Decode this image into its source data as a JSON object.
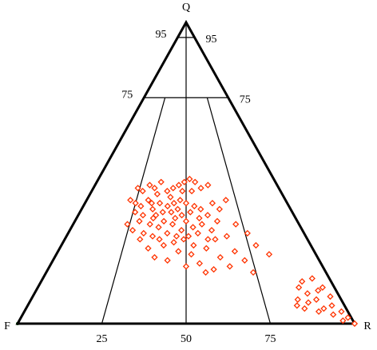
{
  "chart_data": {
    "type": "ternary",
    "apex_label": "Q",
    "left_label": "F",
    "right_label": "R",
    "xlim": [
      0,
      100
    ],
    "ylim": [
      0,
      100
    ],
    "xticks": [
      25,
      50,
      75
    ],
    "yticks": [
      75,
      95
    ],
    "color": "#ff3300",
    "x": [
      30,
      33,
      36,
      40,
      43,
      46,
      49,
      52,
      55,
      58,
      62,
      27,
      24,
      35,
      42,
      48,
      53,
      22,
      25,
      28,
      31,
      34,
      37,
      39,
      41,
      44,
      46,
      48,
      50,
      52,
      54,
      57,
      60,
      63,
      66,
      70,
      26,
      30,
      33,
      36,
      43,
      47,
      24,
      27,
      29,
      32,
      34,
      36,
      38,
      40,
      42,
      44,
      46,
      48,
      50,
      51,
      53,
      55,
      57,
      59,
      61,
      64,
      67,
      72,
      76,
      31,
      35,
      39,
      45,
      49,
      56,
      62,
      35,
      38,
      41,
      43,
      47,
      50,
      52,
      55,
      58,
      60,
      63,
      66,
      69,
      72,
      78,
      82,
      74,
      45,
      53,
      57,
      88,
      90,
      92,
      94,
      96,
      97,
      98,
      99,
      100,
      95,
      93,
      91,
      89,
      87,
      86,
      85,
      97,
      96,
      94,
      90
    ],
    "values": [
      46,
      45,
      47,
      44,
      45,
      46,
      47,
      48,
      47,
      45,
      46,
      44,
      45,
      43,
      42,
      44,
      44,
      41,
      40,
      39,
      41,
      38,
      40,
      37,
      39,
      40,
      38,
      36,
      40,
      37,
      39,
      38,
      36,
      40,
      38,
      41,
      37,
      36,
      40,
      36,
      37,
      41,
      33,
      31,
      34,
      30,
      33,
      29,
      32,
      34,
      30,
      33,
      29,
      31,
      34,
      29,
      32,
      30,
      33,
      28,
      31,
      34,
      29,
      33,
      30,
      28,
      35,
      28,
      35,
      28,
      35,
      28,
      25,
      22,
      26,
      21,
      24,
      19,
      23,
      20,
      25,
      18,
      22,
      19,
      24,
      21,
      26,
      23,
      17,
      27,
      26,
      17,
      12,
      10,
      8,
      11,
      6,
      9,
      4,
      2,
      0,
      3,
      5,
      4,
      7,
      5,
      8,
      6,
      1,
      12,
      15,
      14
    ]
  }
}
